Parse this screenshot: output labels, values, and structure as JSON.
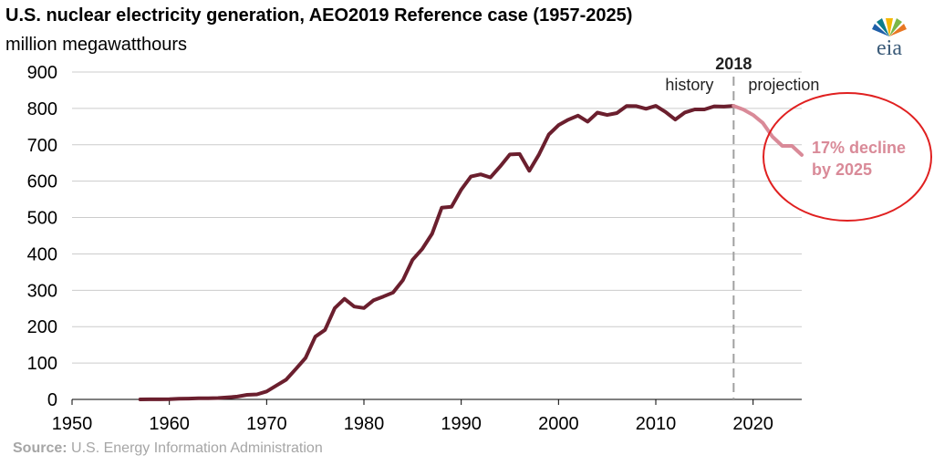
{
  "colors": {
    "history_line": "#6b1f2e",
    "projection_line": "#d98a98",
    "grid": "#cccccc",
    "divider": "#a0a0a0",
    "callout_circle": "#e02020",
    "callout_text": "#d98a98",
    "source_text": "#a6a6a6"
  },
  "logo": {
    "text": "eia",
    "icon": "eia-sunburst-logo"
  },
  "source": {
    "label": "Source:",
    "text": "U.S. Energy Information Administration"
  },
  "chart_data": {
    "type": "line",
    "title": "U.S. nuclear electricity generation, AEO2019 Reference case (1957-2025)",
    "subtitle": "million megawatthours",
    "xlabel": "",
    "ylabel": "",
    "xlim": [
      1950,
      2025
    ],
    "ylim": [
      0,
      900
    ],
    "x_ticks": [
      1950,
      1960,
      1970,
      1980,
      1990,
      2000,
      2010,
      2020
    ],
    "y_ticks": [
      0,
      100,
      200,
      300,
      400,
      500,
      600,
      700,
      800,
      900
    ],
    "grid": "horizontal",
    "divider": {
      "x": 2018,
      "label": "2018",
      "left_label": "history",
      "right_label": "projection"
    },
    "annotation": {
      "line1": "17% decline",
      "line2": "by 2025"
    },
    "series": [
      {
        "segment": "history",
        "x": [
          1957,
          1958,
          1959,
          1960,
          1961,
          1962,
          1963,
          1964,
          1965,
          1966,
          1967,
          1968,
          1969,
          1970,
          1971,
          1972,
          1973,
          1974,
          1975,
          1976,
          1977,
          1978,
          1979,
          1980,
          1981,
          1982,
          1983,
          1984,
          1985,
          1986,
          1987,
          1988,
          1989,
          1990,
          1991,
          1992,
          1993,
          1994,
          1995,
          1996,
          1997,
          1998,
          1999,
          2000,
          2001,
          2002,
          2003,
          2004,
          2005,
          2006,
          2007,
          2008,
          2009,
          2010,
          2011,
          2012,
          2013,
          2014,
          2015,
          2016,
          2017,
          2018
        ],
        "y": [
          0,
          0.2,
          0.2,
          0.5,
          1.7,
          2.3,
          3.2,
          3.3,
          3.7,
          5.5,
          7.7,
          12.5,
          13.9,
          21.8,
          38.1,
          54.1,
          83.5,
          114,
          172.5,
          191.1,
          250.9,
          276.4,
          255.2,
          251.1,
          272.7,
          282.8,
          293.7,
          327.6,
          383.7,
          414,
          455.3,
          527,
          529.4,
          576.9,
          612.6,
          618.8,
          610.3,
          640.4,
          673.4,
          674.7,
          628.6,
          673.7,
          728.3,
          753.9,
          768.8,
          780.1,
          763.7,
          788.5,
          782,
          787.2,
          806.4,
          806.2,
          798.9,
          807,
          790.2,
          769.3,
          789,
          797.2,
          797.2,
          805.7,
          804.9,
          807.1
        ]
      },
      {
        "segment": "projection",
        "x": [
          2018,
          2019,
          2020,
          2021,
          2022,
          2023,
          2024,
          2025
        ],
        "y": [
          807.1,
          797,
          782,
          760,
          722,
          697,
          697,
          672
        ]
      }
    ]
  }
}
